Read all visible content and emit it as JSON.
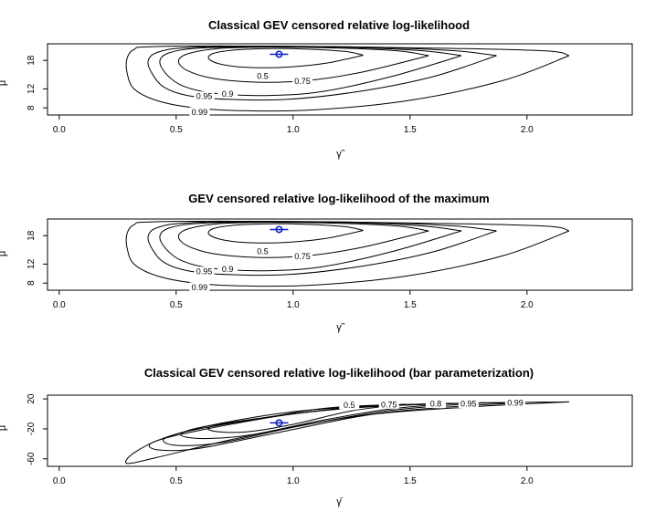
{
  "chart_data": [
    {
      "type": "contour",
      "title": "Classical GEV censored relative log-likelihood",
      "xlabel": "γ̃",
      "ylabel": "μ",
      "xlim": [
        -0.05,
        2.45
      ],
      "ylim": [
        6.5,
        21.5
      ],
      "xticks": [
        "0.0",
        "0.5",
        "1.0",
        "1.5",
        "2.0"
      ],
      "yticks": [
        "8",
        "12",
        "18"
      ],
      "marker_color": "#1020c0",
      "maximum": {
        "x": 0.94,
        "y": 19.3
      },
      "contours": [
        {
          "level": "0.5",
          "label_at": {
            "x": 0.87,
            "y": 14.8
          },
          "points": [
            [
              1.3,
              19.1
            ],
            [
              1.22,
              19.9
            ],
            [
              1.05,
              20.4
            ],
            [
              0.9,
              20.5
            ],
            [
              0.75,
              20.2
            ],
            [
              0.66,
              19.5
            ],
            [
              0.64,
              18.3
            ],
            [
              0.7,
              17.1
            ],
            [
              0.82,
              16.5
            ],
            [
              0.98,
              16.6
            ],
            [
              1.14,
              17.4
            ],
            [
              1.3,
              19.1
            ]
          ]
        },
        {
          "level": "0.75",
          "label_at": {
            "x": 1.04,
            "y": 13.7
          },
          "points": [
            [
              1.58,
              19.0
            ],
            [
              1.45,
              20.0
            ],
            [
              1.2,
              20.6
            ],
            [
              0.9,
              20.8
            ],
            [
              0.68,
              20.5
            ],
            [
              0.55,
              19.4
            ],
            [
              0.51,
              17.8
            ],
            [
              0.55,
              15.8
            ],
            [
              0.66,
              14.2
            ],
            [
              0.85,
              13.4
            ],
            [
              1.07,
              13.8
            ],
            [
              1.3,
              15.6
            ],
            [
              1.58,
              19.0
            ]
          ]
        },
        {
          "level": "0.9",
          "label_at": {
            "x": 0.72,
            "y": 11.0
          },
          "points": [
            [
              1.72,
              19.0
            ],
            [
              1.56,
              20.0
            ],
            [
              1.28,
              20.7
            ],
            [
              0.9,
              20.9
            ],
            [
              0.6,
              20.6
            ],
            [
              0.47,
              19.6
            ],
            [
              0.43,
              17.8
            ],
            [
              0.46,
              15.0
            ],
            [
              0.53,
              12.6
            ],
            [
              0.66,
              11.1
            ],
            [
              0.88,
              10.6
            ],
            [
              1.12,
              11.4
            ],
            [
              1.42,
              14.6
            ],
            [
              1.72,
              19.0
            ]
          ]
        },
        {
          "level": "0.95",
          "label_at": {
            "x": 0.62,
            "y": 10.5
          },
          "points": [
            [
              1.87,
              19.0
            ],
            [
              1.7,
              20.0
            ],
            [
              1.38,
              20.7
            ],
            [
              0.9,
              21.0
            ],
            [
              0.55,
              20.7
            ],
            [
              0.42,
              19.7
            ],
            [
              0.38,
              17.8
            ],
            [
              0.4,
              15.0
            ],
            [
              0.45,
              12.3
            ],
            [
              0.55,
              10.6
            ],
            [
              0.72,
              9.8
            ],
            [
              0.98,
              9.8
            ],
            [
              1.3,
              11.6
            ],
            [
              1.6,
              14.6
            ],
            [
              1.87,
              19.0
            ]
          ]
        },
        {
          "level": "0.99",
          "label_at": {
            "x": 0.6,
            "y": 7.2
          },
          "points": [
            [
              2.18,
              19.0
            ],
            [
              2.08,
              20.0
            ],
            [
              1.6,
              20.6
            ],
            [
              0.9,
              21.0
            ],
            [
              0.4,
              20.9
            ],
            [
              0.32,
              20.3
            ],
            [
              0.29,
              18.4
            ],
            [
              0.29,
              15.5
            ],
            [
              0.32,
              12.0
            ],
            [
              0.42,
              9.5
            ],
            [
              0.58,
              8.0
            ],
            [
              0.8,
              7.4
            ],
            [
              1.1,
              7.6
            ],
            [
              1.5,
              9.6
            ],
            [
              1.9,
              13.8
            ],
            [
              2.18,
              19.0
            ]
          ]
        }
      ]
    },
    {
      "type": "contour",
      "title": "GEV censored relative log-likelihood of the maximum",
      "xlabel": "γ̃",
      "ylabel": "μ",
      "xlim": [
        -0.05,
        2.45
      ],
      "ylim": [
        6.5,
        21.5
      ],
      "xticks": [
        "0.0",
        "0.5",
        "1.0",
        "1.5",
        "2.0"
      ],
      "yticks": [
        "8",
        "12",
        "18"
      ],
      "marker_color": "#1020c0",
      "maximum": {
        "x": 0.94,
        "y": 19.3
      },
      "contours": [
        {
          "level": "0.5",
          "label_at": {
            "x": 0.87,
            "y": 14.8
          },
          "points": [
            [
              1.3,
              19.1
            ],
            [
              1.22,
              19.9
            ],
            [
              1.05,
              20.4
            ],
            [
              0.9,
              20.5
            ],
            [
              0.75,
              20.2
            ],
            [
              0.66,
              19.5
            ],
            [
              0.64,
              18.3
            ],
            [
              0.7,
              17.1
            ],
            [
              0.82,
              16.5
            ],
            [
              0.98,
              16.6
            ],
            [
              1.14,
              17.4
            ],
            [
              1.3,
              19.1
            ]
          ]
        },
        {
          "level": "0.75",
          "label_at": {
            "x": 1.04,
            "y": 13.7
          },
          "points": [
            [
              1.58,
              19.0
            ],
            [
              1.45,
              20.0
            ],
            [
              1.2,
              20.6
            ],
            [
              0.9,
              20.8
            ],
            [
              0.68,
              20.5
            ],
            [
              0.55,
              19.4
            ],
            [
              0.51,
              17.8
            ],
            [
              0.55,
              15.8
            ],
            [
              0.66,
              14.2
            ],
            [
              0.85,
              13.4
            ],
            [
              1.07,
              13.8
            ],
            [
              1.3,
              15.6
            ],
            [
              1.58,
              19.0
            ]
          ]
        },
        {
          "level": "0.9",
          "label_at": {
            "x": 0.72,
            "y": 11.0
          },
          "points": [
            [
              1.72,
              19.0
            ],
            [
              1.56,
              20.0
            ],
            [
              1.28,
              20.7
            ],
            [
              0.9,
              20.9
            ],
            [
              0.6,
              20.6
            ],
            [
              0.47,
              19.6
            ],
            [
              0.43,
              17.8
            ],
            [
              0.46,
              15.0
            ],
            [
              0.53,
              12.6
            ],
            [
              0.66,
              11.1
            ],
            [
              0.88,
              10.6
            ],
            [
              1.12,
              11.4
            ],
            [
              1.42,
              14.6
            ],
            [
              1.72,
              19.0
            ]
          ]
        },
        {
          "level": "0.95",
          "label_at": {
            "x": 0.62,
            "y": 10.5
          },
          "points": [
            [
              1.87,
              19.0
            ],
            [
              1.7,
              20.0
            ],
            [
              1.38,
              20.7
            ],
            [
              0.9,
              21.0
            ],
            [
              0.55,
              20.7
            ],
            [
              0.42,
              19.7
            ],
            [
              0.38,
              17.8
            ],
            [
              0.4,
              15.0
            ],
            [
              0.45,
              12.3
            ],
            [
              0.55,
              10.6
            ],
            [
              0.72,
              9.8
            ],
            [
              0.98,
              9.8
            ],
            [
              1.3,
              11.6
            ],
            [
              1.6,
              14.6
            ],
            [
              1.87,
              19.0
            ]
          ]
        },
        {
          "level": "0.99",
          "label_at": {
            "x": 0.6,
            "y": 7.2
          },
          "points": [
            [
              2.18,
              19.0
            ],
            [
              2.08,
              20.0
            ],
            [
              1.6,
              20.6
            ],
            [
              0.9,
              21.0
            ],
            [
              0.4,
              20.9
            ],
            [
              0.32,
              20.3
            ],
            [
              0.29,
              18.4
            ],
            [
              0.29,
              15.5
            ],
            [
              0.32,
              12.0
            ],
            [
              0.42,
              9.5
            ],
            [
              0.58,
              8.0
            ],
            [
              0.8,
              7.4
            ],
            [
              1.1,
              7.6
            ],
            [
              1.5,
              9.6
            ],
            [
              1.9,
              13.8
            ],
            [
              2.18,
              19.0
            ]
          ]
        }
      ]
    },
    {
      "type": "contour",
      "title": "Classical GEV censored relative log-likelihood (bar parameterization)",
      "xlabel": "γ̄",
      "ylabel": "μ̄",
      "xlim": [
        -0.05,
        2.45
      ],
      "ylim": [
        -70,
        25
      ],
      "xticks": [
        "0.0",
        "0.5",
        "1.0",
        "1.5",
        "2.0"
      ],
      "yticks": [
        "20",
        "-20",
        "-60"
      ],
      "marker_color": "#1020c0",
      "maximum": {
        "x": 0.94,
        "y": -12
      },
      "contours": [
        {
          "level": "0.5",
          "label_at": {
            "x": 1.24,
            "y": 12
          },
          "points": [
            [
              1.48,
              13.0
            ],
            [
              1.15,
              8.0
            ],
            [
              0.9,
              -4.0
            ],
            [
              0.66,
              -16.0
            ],
            [
              0.66,
              -23.0
            ],
            [
              0.8,
              -24.0
            ],
            [
              1.0,
              -14.0
            ],
            [
              1.25,
              4.0
            ],
            [
              1.48,
              13.0
            ]
          ]
        },
        {
          "level": "0.75",
          "label_at": {
            "x": 1.41,
            "y": 13
          },
          "points": [
            [
              1.68,
              14.0
            ],
            [
              1.3,
              10.0
            ],
            [
              0.95,
              -2.0
            ],
            [
              0.62,
              -17.0
            ],
            [
              0.52,
              -28.0
            ],
            [
              0.62,
              -33.0
            ],
            [
              0.82,
              -28.0
            ],
            [
              1.1,
              -10.0
            ],
            [
              1.4,
              6.0
            ],
            [
              1.68,
              14.0
            ]
          ]
        },
        {
          "level": "0.8",
          "label_at": {
            "x": 1.61,
            "y": 14
          },
          "points": [
            [
              1.82,
              15.0
            ],
            [
              1.4,
              11.0
            ],
            [
              1.0,
              0.0
            ],
            [
              0.6,
              -20.0
            ],
            [
              0.45,
              -33.0
            ],
            [
              0.5,
              -42.0
            ],
            [
              0.7,
              -38.0
            ],
            [
              1.0,
              -18.0
            ],
            [
              1.4,
              4.0
            ],
            [
              1.82,
              15.0
            ]
          ]
        },
        {
          "level": "0.95",
          "label_at": {
            "x": 1.75,
            "y": 14
          },
          "points": [
            [
              1.96,
              15.0
            ],
            [
              1.5,
              12.0
            ],
            [
              1.05,
              2.0
            ],
            [
              0.6,
              -22.0
            ],
            [
              0.4,
              -38.0
            ],
            [
              0.42,
              -48.0
            ],
            [
              0.6,
              -46.0
            ],
            [
              0.95,
              -24.0
            ],
            [
              1.4,
              2.0
            ],
            [
              1.96,
              15.0
            ]
          ]
        },
        {
          "level": "0.99",
          "label_at": {
            "x": 1.95,
            "y": 15
          },
          "points": [
            [
              2.18,
              16.0
            ],
            [
              1.7,
              14.0
            ],
            [
              1.1,
              6.0
            ],
            [
              0.7,
              -12.0
            ],
            [
              0.45,
              -32.0
            ],
            [
              0.32,
              -52.0
            ],
            [
              0.29,
              -66.0
            ],
            [
              0.42,
              -58.0
            ],
            [
              0.8,
              -30.0
            ],
            [
              1.3,
              -2.0
            ],
            [
              1.8,
              10.0
            ],
            [
              2.18,
              16.0
            ]
          ]
        }
      ]
    }
  ]
}
